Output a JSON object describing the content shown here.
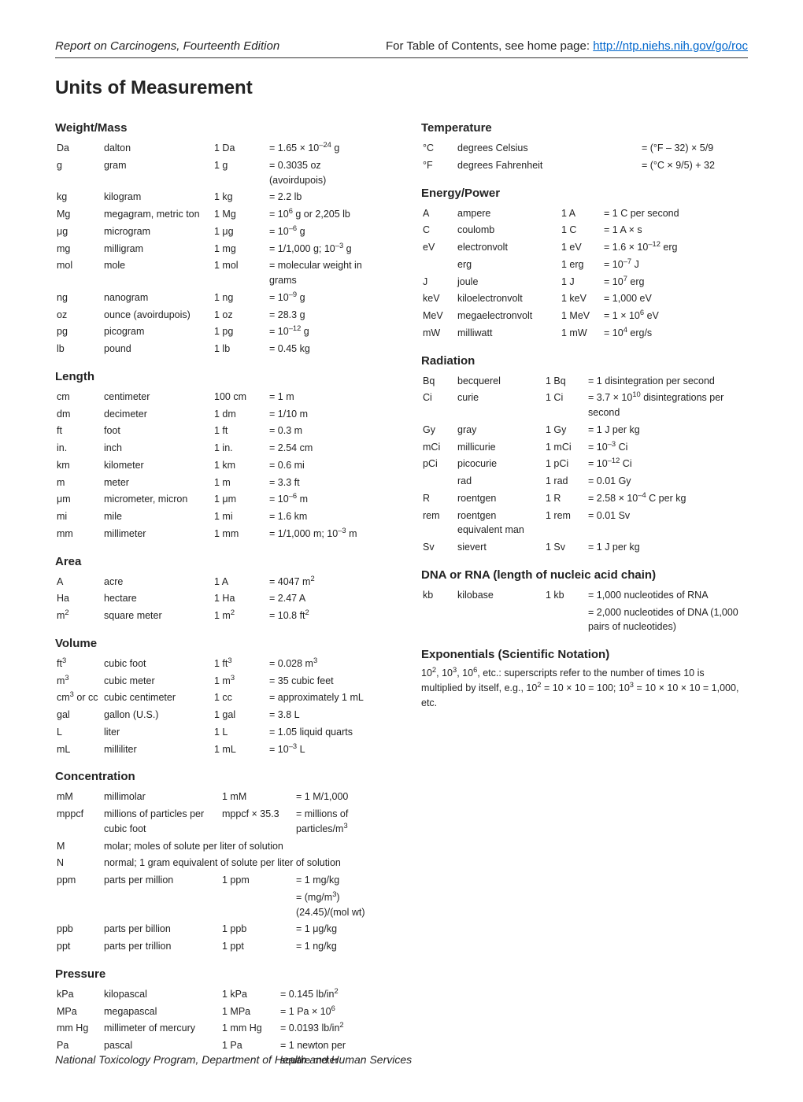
{
  "header": {
    "title_left": "Report on Carcinogens, Fourteenth Edition",
    "title_right_text": "For Table of Contents, see home page: ",
    "title_right_link": "http://ntp.niehs.nih.gov/go/roc"
  },
  "page_title": "Units of Measurement",
  "footer": "National Toxicology Program, Department of Health and Human Services",
  "left_sections": [
    {
      "title": "Weight/Mass",
      "rows": [
        [
          "Da",
          "dalton",
          "1 Da",
          "= 1.65 × 10<sup>–24</sup> g"
        ],
        [
          "g",
          "gram",
          "1 g",
          "= 0.3035 oz (avoirdupois)"
        ],
        [
          "kg",
          "kilogram",
          "1 kg",
          "= 2.2 lb"
        ],
        [
          "Mg",
          "megagram, metric ton",
          "1 Mg",
          "= 10<sup>6</sup> g or 2,205 lb"
        ],
        [
          "μg",
          "microgram",
          "1 μg",
          "= 10<sup>–6</sup> g"
        ],
        [
          "mg",
          "milligram",
          "1 mg",
          "= 1/1,000 g; 10<sup>–3</sup> g"
        ],
        [
          "mol",
          "mole",
          "1 mol",
          "= molecular weight in grams"
        ],
        [
          "ng",
          "nanogram",
          "1 ng",
          "= 10<sup>–9</sup> g"
        ],
        [
          "oz",
          "ounce (avoirdupois)",
          "1 oz",
          "= 28.3 g"
        ],
        [
          "pg",
          "picogram",
          "1 pg",
          "= 10<sup>–12</sup> g"
        ],
        [
          "lb",
          "pound",
          "1 lb",
          "= 0.45 kg"
        ]
      ]
    },
    {
      "title": "Length",
      "rows": [
        [
          "cm",
          "centimeter",
          "100 cm",
          "= 1 m"
        ],
        [
          "dm",
          "decimeter",
          "1 dm",
          "= 1/10 m"
        ],
        [
          "ft",
          "foot",
          "1 ft",
          "= 0.3 m"
        ],
        [
          "in.",
          "inch",
          "1 in.",
          "= 2.54 cm"
        ],
        [
          "km",
          "kilometer",
          "1 km",
          "= 0.6 mi"
        ],
        [
          "m",
          "meter",
          "1 m",
          "= 3.3 ft"
        ],
        [
          "μm",
          "micrometer, micron",
          "1 μm",
          "= 10<sup>–6</sup> m"
        ],
        [
          "mi",
          "mile",
          "1 mi",
          "= 1.6 km"
        ],
        [
          "mm",
          "millimeter",
          "1 mm",
          "= 1/1,000 m; 10<sup>–3</sup> m"
        ]
      ]
    },
    {
      "title": "Area",
      "rows": [
        [
          "A",
          "acre",
          "1 A",
          "= 4047 m<sup>2</sup>"
        ],
        [
          "Ha",
          "hectare",
          "1 Ha",
          "= 2.47 A"
        ],
        [
          "m<sup>2</sup>",
          "square meter",
          "1 m<sup>2</sup>",
          "= 10.8 ft<sup>2</sup>"
        ]
      ]
    },
    {
      "title": "Volume",
      "rows": [
        [
          "ft<sup>3</sup>",
          "cubic foot",
          "1 ft<sup>3</sup>",
          "= 0.028 m<sup>3</sup>"
        ],
        [
          "m<sup>3</sup>",
          "cubic meter",
          "1 m<sup>3</sup>",
          "= 35 cubic feet"
        ],
        [
          "cm<sup>3</sup> or cc",
          "cubic centimeter",
          "1 cc",
          "= approximately 1 mL"
        ],
        [
          "gal",
          "gallon (U.S.)",
          "1 gal",
          "= 3.8 L"
        ],
        [
          "L",
          "liter",
          "1 L",
          "= 1.05 liquid quarts"
        ],
        [
          "mL",
          "milliliter",
          "1 mL",
          "= 10<sup>–3</sup> L"
        ]
      ]
    },
    {
      "title": "Concentration",
      "col_widths": [
        "58px",
        "148px",
        "92px",
        ""
      ],
      "rows": [
        [
          "mM",
          "millimolar",
          "1 mM",
          "= 1 M/1,000"
        ],
        [
          "mppcf",
          "millions of particles per cubic foot",
          "mppcf × 35.3",
          "= millions of particles/m<sup>3</sup>"
        ],
        [
          "M",
          "molar; moles of solute per liter of solution",
          "",
          ""
        ],
        [
          "N",
          "normal; 1 gram equivalent of solute per liter of solution",
          "",
          ""
        ],
        [
          "ppm",
          "parts per million",
          "1 ppm",
          "= 1 mg/kg"
        ],
        [
          "",
          "",
          "",
          "= (mg/m<sup>3</sup>)(24.45)/(mol wt)"
        ],
        [
          "ppb",
          "parts per billion",
          "1 ppb",
          "= 1 μg/kg"
        ],
        [
          "ppt",
          "parts per trillion",
          "1 ppt",
          "= 1 ng/kg"
        ]
      ],
      "spans": {
        "2": [
          1,
          3
        ],
        "3": [
          1,
          3
        ]
      }
    },
    {
      "title": "Pressure",
      "col_widths": [
        "58px",
        "148px",
        "72px",
        ""
      ],
      "rows": [
        [
          "kPa",
          "kilopascal",
          "1 kPa",
          "= 0.145 lb/in<sup>2</sup>"
        ],
        [
          "MPa",
          "megapascal",
          "1 MPa",
          "= 1 Pa × 10<sup>6</sup>"
        ],
        [
          "mm Hg",
          "millimeter of mercury",
          "1 mm Hg",
          "= 0.0193 lb/in<sup>2</sup>"
        ],
        [
          "Pa",
          "pascal",
          "1 Pa",
          "= 1 newton per square meter"
        ]
      ]
    }
  ],
  "right_sections": [
    {
      "title": "Temperature",
      "col_widths": [
        "42px",
        "162px",
        "",
        ""
      ],
      "rows": [
        [
          "°C",
          "degrees Celsius",
          "",
          "= (°F – 32) × 5/9"
        ],
        [
          "°F",
          "degrees Fahrenheit",
          "",
          "= (°C × 9/5) + 32"
        ]
      ]
    },
    {
      "title": "Energy/Power",
      "col_widths": [
        "42px",
        "130px",
        "52px",
        ""
      ],
      "rows": [
        [
          "A",
          "ampere",
          "1 A",
          "= 1 C per second"
        ],
        [
          "C",
          "coulomb",
          "1 C",
          "= 1 A × s"
        ],
        [
          "eV",
          "electronvolt",
          "1 eV",
          "= 1.6 × 10<sup>–12</sup> erg"
        ],
        [
          "",
          "erg",
          "1 erg",
          "= 10<sup>–7</sup> J"
        ],
        [
          "J",
          "joule",
          "1 J",
          "= 10<sup>7</sup> erg"
        ],
        [
          "keV",
          "kiloelectronvolt",
          "1 keV",
          "= 1,000 eV"
        ],
        [
          "MeV",
          "megaelectronvolt",
          "1 MeV",
          "= 1 × 10<sup>6</sup> eV"
        ],
        [
          "mW",
          "milliwatt",
          "1 mW",
          "= 10<sup>4</sup> erg/s"
        ]
      ]
    },
    {
      "title": "Radiation",
      "col_widths": [
        "42px",
        "110px",
        "52px",
        ""
      ],
      "rows": [
        [
          "Bq",
          "becquerel",
          "1 Bq",
          "= 1 disintegration per second"
        ],
        [
          "Ci",
          "curie",
          "1 Ci",
          "= 3.7 × 10<sup>10</sup> disintegrations per second"
        ],
        [
          "Gy",
          "gray",
          "1 Gy",
          "= 1 J per kg"
        ],
        [
          "mCi",
          "millicurie",
          "1 mCi",
          "= 10<sup>–3</sup> Ci"
        ],
        [
          "pCi",
          "picocurie",
          "1 pCi",
          "= 10<sup>–12</sup> Ci"
        ],
        [
          "",
          "rad",
          "1 rad",
          "= 0.01 Gy"
        ],
        [
          "R",
          "roentgen",
          "1 R",
          "= 2.58 × 10<sup>–4</sup> C per kg"
        ],
        [
          "rem",
          "roentgen equivalent man",
          "1 rem",
          "= 0.01 Sv"
        ],
        [
          "Sv",
          "sievert",
          "1 Sv",
          "= 1 J per kg"
        ]
      ]
    },
    {
      "title": "DNA or RNA (length of nucleic acid chain)",
      "col_widths": [
        "42px",
        "110px",
        "52px",
        ""
      ],
      "rows": [
        [
          "kb",
          "kilobase",
          "1 kb",
          "= 1,000 nucleotides of RNA"
        ],
        [
          "",
          "",
          "",
          "= 2,000 nucleotides of DNA (1,000 pairs of nucleotides)"
        ]
      ]
    },
    {
      "title": "Exponentials (Scientific Notation)",
      "paragraph": "10<sup>2</sup>, 10<sup>3</sup>, 10<sup>6</sup>, etc.: superscripts refer to the number of times 10 is multiplied by itself, e.g., 10<sup>2</sup> = 10 × 10 = 100; 10<sup>3</sup> = 10 × 10 × 10 = 1,000, etc."
    }
  ]
}
